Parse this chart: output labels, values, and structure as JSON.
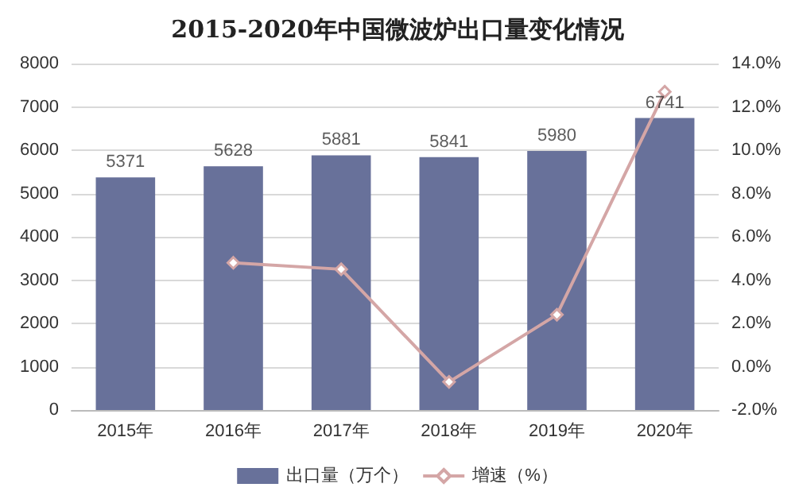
{
  "chart_data": {
    "type": "bar",
    "title": "2015-2020年中国微波炉出口量变化情况",
    "categories": [
      "2015年",
      "2016年",
      "2017年",
      "2018年",
      "2019年",
      "2020年"
    ],
    "series": [
      {
        "name": "出口量（万个）",
        "color": "#68719a",
        "values": [
          5371,
          5628,
          5881,
          5841,
          5980,
          6741
        ],
        "value_labels": [
          "5371",
          "5628",
          "5881",
          "5841",
          "5980",
          "6741"
        ]
      },
      {
        "name": "增速（%）",
        "type": "line",
        "axis": "y2",
        "color": "#d4a6a6",
        "marker": "diamond",
        "values": [
          null,
          4.8,
          4.5,
          -0.7,
          2.4,
          12.7
        ]
      }
    ],
    "ylim": [
      0,
      8000
    ],
    "yticks": [
      0,
      1000,
      2000,
      3000,
      4000,
      5000,
      6000,
      7000,
      8000
    ],
    "y2lim": [
      -2,
      14
    ],
    "y2ticks": [
      {
        "value": -2,
        "label": "-2.0%"
      },
      {
        "value": 0,
        "label": "0.0%"
      },
      {
        "value": 2,
        "label": "2.0%"
      },
      {
        "value": 4,
        "label": "4.0%"
      },
      {
        "value": 6,
        "label": "6.0%"
      },
      {
        "value": 8,
        "label": "8.0%"
      },
      {
        "value": 10,
        "label": "10.0%"
      },
      {
        "value": 12,
        "label": "12.0%"
      },
      {
        "value": 14,
        "label": "14.0%"
      }
    ],
    "grid": "y",
    "legend": "bottom"
  }
}
